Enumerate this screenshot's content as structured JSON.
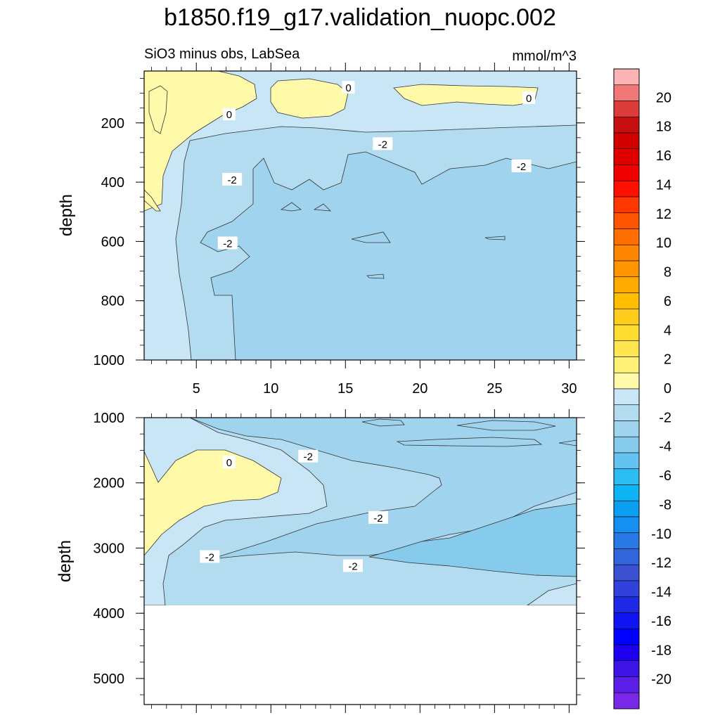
{
  "chart_data": {
    "type": "contour",
    "title": "b1850.f19_g17.validation_nuopc.002",
    "subtitle_left": "SiO3 minus obs, LabSea",
    "units": "mmol/m^3",
    "x_ticks": [
      5,
      10,
      15,
      20,
      25,
      30
    ],
    "xlim": [
      1.5,
      30.5
    ],
    "panels": [
      {
        "name": "upper",
        "ylabel": "depth",
        "ylim": [
          1000,
          25
        ],
        "y_ticks": [
          200,
          400,
          600,
          800,
          1000
        ],
        "contour_labels": [
          {
            "text": "0",
            "x": 7.2,
            "y": 170
          },
          {
            "text": "0",
            "x": 15.2,
            "y": 80
          },
          {
            "text": "0",
            "x": 27.3,
            "y": 115
          },
          {
            "text": "-2",
            "x": 17.5,
            "y": 270
          },
          {
            "text": "-2",
            "x": 7.4,
            "y": 390
          },
          {
            "text": "-2",
            "x": 26.8,
            "y": 345
          },
          {
            "text": "-2",
            "x": 7.1,
            "y": 605
          }
        ]
      },
      {
        "name": "lower",
        "ylabel": "depth",
        "ylim": [
          5400,
          1000
        ],
        "y_ticks": [
          1000,
          2000,
          3000,
          4000,
          5000
        ],
        "missing_below": 3870,
        "contour_labels": [
          {
            "text": "0",
            "x": 7.2,
            "y": 1680
          },
          {
            "text": "-2",
            "x": 12.5,
            "y": 1590
          },
          {
            "text": "-2",
            "x": 17.2,
            "y": 2530
          },
          {
            "text": "-2",
            "x": 5.9,
            "y": 3130
          },
          {
            "text": "-2",
            "x": 15.5,
            "y": 3270
          }
        ]
      }
    ],
    "colorbar": {
      "levels": [
        20,
        18,
        16,
        14,
        12,
        10,
        8,
        6,
        4,
        2,
        0,
        -2,
        -4,
        -6,
        -8,
        -10,
        -12,
        -14,
        -16,
        -18,
        -20
      ],
      "colors": [
        "#fdb4b4",
        "#f07878",
        "#dc3c3c",
        "#c80f0f",
        "#d20000",
        "#e10000",
        "#f00000",
        "#ff0f00",
        "#ff3700",
        "#ff5500",
        "#ff6e00",
        "#ff8700",
        "#ff9600",
        "#ffaa00",
        "#ffbe00",
        "#ffcd1e",
        "#ffdc32",
        "#ffe650",
        "#fff078",
        "#fffaaa",
        "#c8e6f5",
        "#b4dcf0",
        "#a0d4ee",
        "#87cbec",
        "#64c3f0",
        "#2dbdf5",
        "#0fb4f5",
        "#0a9ff0",
        "#1490f0",
        "#2878e6",
        "#3264dc",
        "#3c50d2",
        "#3241dc",
        "#1e28e6",
        "#0f14f0",
        "#0000ff",
        "#1e00f0",
        "#3c14e6",
        "#5a1ee6",
        "#7828e6"
      ]
    }
  }
}
